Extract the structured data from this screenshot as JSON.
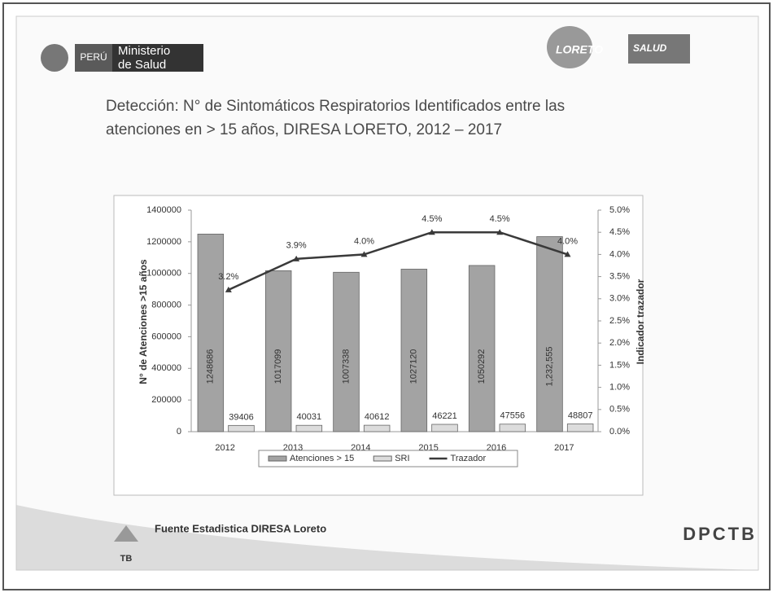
{
  "header": {
    "country": "PERÚ",
    "ministry": [
      "Ministerio",
      "de Salud"
    ],
    "region": "LORETO",
    "sector": "SALUD"
  },
  "footer": {
    "source": "Fuente Estadistica DIRESA Loreto",
    "program": "DPCTB",
    "badge": "TB"
  },
  "chart_data": {
    "type": "bar",
    "title": [
      "Detección: N° de Sintomáticos Respiratorios  Identificados entre las",
      "atenciones en > 15 años, DIRESA LORETO, 2012 –  2017"
    ],
    "y_label": "N° de Atenciones >15 años",
    "y2_label": "Indicador trazador",
    "categories": [
      "2012",
      "2013",
      "2014",
      "2015",
      "2016",
      "2017"
    ],
    "series": [
      {
        "name": "Atenciones > 15",
        "color": "#a3a3a3",
        "values": [
          1248686,
          1017099,
          1007338,
          1027120,
          1050292,
          1232555
        ],
        "value_labels": [
          "1248686",
          "1017099",
          "1007338",
          "1027120",
          "1050292",
          "1,232,555"
        ]
      },
      {
        "name": "SRI",
        "color": "#dcdcdc",
        "values": [
          39406,
          40031,
          40612,
          46221,
          47556,
          48807
        ]
      },
      {
        "name": "Trazador",
        "type": "line",
        "axis": "y2",
        "color": "#3a3a3a",
        "values": [
          3.2,
          3.9,
          4.0,
          4.5,
          4.5,
          4.0
        ],
        "value_labels": [
          "3.2%",
          "3.9%",
          "4.0%",
          "4.5%",
          "4.5%",
          "4.0%"
        ]
      }
    ],
    "ylim": [
      0,
      1400000
    ],
    "yticks": [
      0,
      200000,
      400000,
      600000,
      800000,
      1000000,
      1200000,
      1400000
    ],
    "y2lim": [
      0,
      5
    ],
    "y2ticks": [
      {
        "value": 0,
        "label": "0.0%"
      },
      {
        "value": 0.5,
        "label": "0.5%"
      },
      {
        "value": 1,
        "label": "1.0%"
      },
      {
        "value": 1.5,
        "label": "1.5%"
      },
      {
        "value": 2,
        "label": "2.0%"
      },
      {
        "value": 2.5,
        "label": "2.5%"
      },
      {
        "value": 3,
        "label": "3.0%"
      },
      {
        "value": 3.5,
        "label": "3.5%"
      },
      {
        "value": 4,
        "label": "4.0%"
      },
      {
        "value": 4.5,
        "label": "4.5%"
      },
      {
        "value": 5,
        "label": "5.0%"
      }
    ],
    "legend": "bottom"
  }
}
